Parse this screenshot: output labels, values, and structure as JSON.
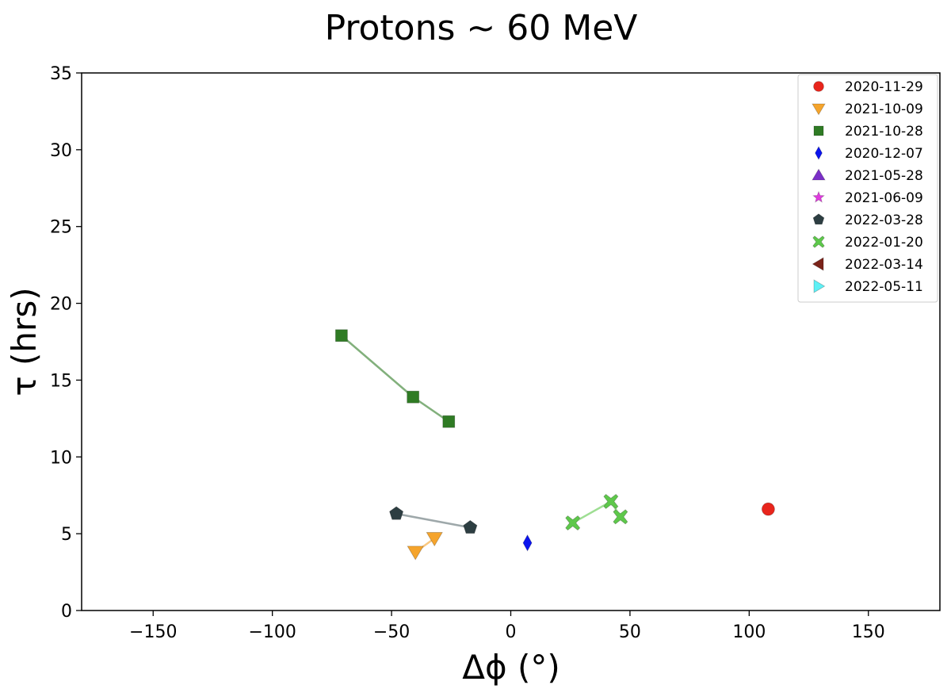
{
  "chart_data": {
    "type": "scatter",
    "title": "Protons ~ 60 MeV",
    "xlabel": "Δϕ (°)",
    "ylabel": "τ (hrs)",
    "xlim": [
      -180,
      180
    ],
    "ylim": [
      0,
      35
    ],
    "x_ticks": [
      -150,
      -100,
      -50,
      0,
      50,
      100,
      150
    ],
    "y_ticks": [
      0,
      5,
      10,
      15,
      20,
      25,
      30,
      35
    ],
    "x_tick_labels": [
      "−150",
      "−100",
      "−50",
      "0",
      "50",
      "100",
      "150"
    ],
    "y_tick_labels": [
      "0",
      "5",
      "10",
      "15",
      "20",
      "25",
      "30",
      "35"
    ],
    "grid": false,
    "legend_position": "top-right",
    "series": [
      {
        "name": "2020-11-29",
        "marker": "circle",
        "color": "#e8251c",
        "line_color": "#e8251c",
        "points": [
          [
            108,
            6.6
          ]
        ]
      },
      {
        "name": "2021-10-09",
        "marker": "triangle-down",
        "color": "#f5a42c",
        "line_color": "#f5a42c",
        "points": [
          [
            -40,
            3.8
          ],
          [
            -32,
            4.7
          ]
        ]
      },
      {
        "name": "2021-10-28",
        "marker": "square",
        "color": "#2f7b24",
        "line_color": "#2f7b24",
        "points": [
          [
            -71,
            17.9
          ],
          [
            -41,
            13.9
          ],
          [
            -26,
            12.3
          ]
        ]
      },
      {
        "name": "2020-12-07",
        "marker": "diamond",
        "color": "#0b14ee",
        "line_color": "#0b14ee",
        "points": [
          [
            7,
            4.4
          ]
        ]
      },
      {
        "name": "2021-05-28",
        "marker": "triangle-up",
        "color": "#7b2fc8",
        "line_color": "#7b2fc8",
        "points": []
      },
      {
        "name": "2021-06-09",
        "marker": "star",
        "color": "#e03adf",
        "line_color": "#e03adf",
        "points": []
      },
      {
        "name": "2022-03-28",
        "marker": "pentagon",
        "color": "#2d3e42",
        "line_color": "#5e6e72",
        "points": [
          [
            -48,
            6.3
          ],
          [
            -17,
            5.4
          ]
        ]
      },
      {
        "name": "2022-01-20",
        "marker": "x-filled",
        "color": "#5ec84b",
        "line_color": "#5ec84b",
        "points": [
          [
            26,
            5.7
          ],
          [
            42,
            7.1
          ],
          [
            46,
            6.1
          ]
        ]
      },
      {
        "name": "2022-03-14",
        "marker": "triangle-left",
        "color": "#7b2319",
        "line_color": "#7b2319",
        "points": []
      },
      {
        "name": "2022-05-11",
        "marker": "triangle-right",
        "color": "#5ef0f5",
        "line_color": "#5ef0f5",
        "points": []
      }
    ]
  }
}
